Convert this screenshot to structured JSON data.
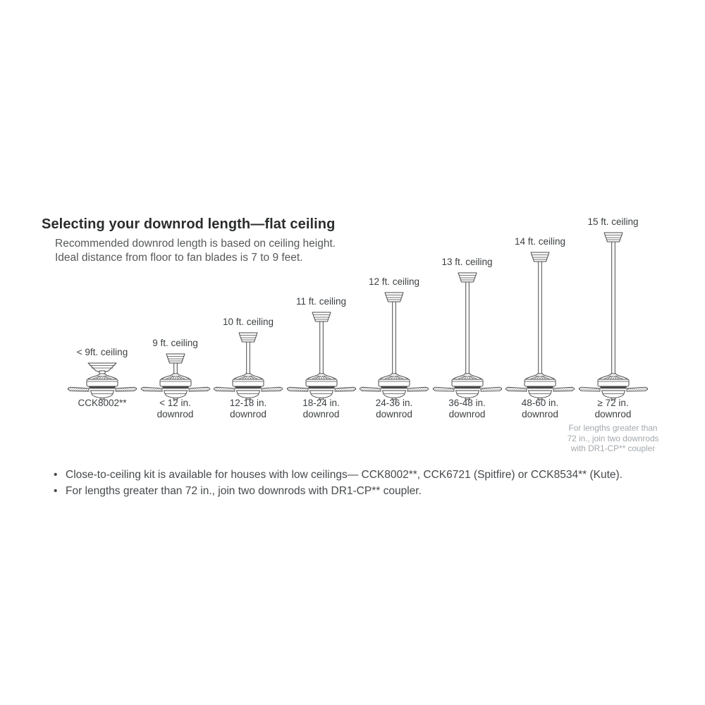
{
  "page": {
    "title": "Selecting your downrod length—flat ceiling",
    "subtitle_line1": "Recommended downrod length is based on ceiling height.",
    "subtitle_line2": "Ideal distance from floor to fan blades is 7 to 9 feet.",
    "bullet_char": "•"
  },
  "fans": [
    {
      "ceiling_label": "< 9ft. ceiling",
      "downrod_label": "CCK8002**",
      "downrod_sublabel": "",
      "type": "close-to-ceiling",
      "rod_units": 0
    },
    {
      "ceiling_label": "9 ft. ceiling",
      "downrod_label": "< 12 in.",
      "downrod_sublabel": "downrod",
      "type": "downrod",
      "rod_units": 15
    },
    {
      "ceiling_label": "10 ft. ceiling",
      "downrod_label": "12-18 in.",
      "downrod_sublabel": "downrod",
      "type": "downrod",
      "rod_units": 45
    },
    {
      "ceiling_label": "11 ft. ceiling",
      "downrod_label": "18-24 in.",
      "downrod_sublabel": "downrod",
      "type": "downrod",
      "rod_units": 74
    },
    {
      "ceiling_label": "12 ft. ceiling",
      "downrod_label": "24-36 in.",
      "downrod_sublabel": "downrod",
      "type": "downrod",
      "rod_units": 102
    },
    {
      "ceiling_label": "13 ft. ceiling",
      "downrod_label": "36-48 in.",
      "downrod_sublabel": "downrod",
      "type": "downrod",
      "rod_units": 130
    },
    {
      "ceiling_label": "14 ft. ceiling",
      "downrod_label": "48-60 in.",
      "downrod_sublabel": "downrod",
      "type": "downrod",
      "rod_units": 159
    },
    {
      "ceiling_label": "15 ft. ceiling",
      "downrod_label": "≥ 72 in.",
      "downrod_sublabel": "downrod",
      "type": "downrod",
      "rod_units": 187,
      "note_lines": [
        "For lengths greater than",
        "72 in., join two downrods",
        "with DR1-CP** coupler"
      ]
    }
  ],
  "bullets": [
    "Close-to-ceiling kit is available for houses with low ceilings— CCK8002**, CCK6721 (Spitfire) or CCK8534** (Kute).",
    "For lengths greater than 72 in., join two downrods with DR1-CP** coupler."
  ],
  "colors": {
    "line_art": "#4a4a4a",
    "label_text": "#3b3f42",
    "note_text": "#a3a8ac",
    "background": "#ffffff"
  }
}
